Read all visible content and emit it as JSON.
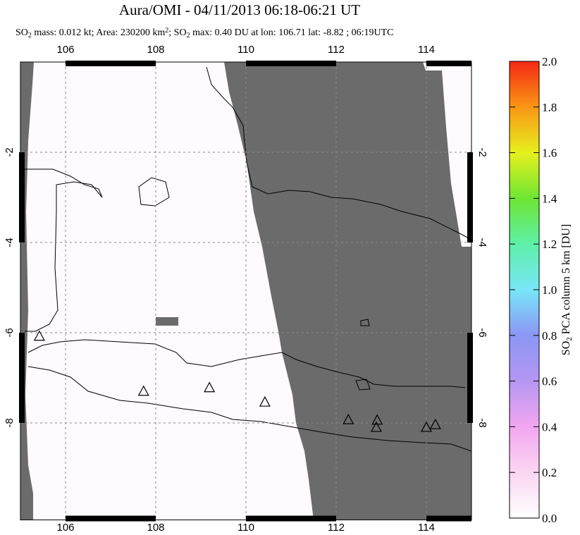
{
  "chart_data": {
    "type": "map",
    "title": "Aura/OMI - 04/11/2013 06:18-06:21 UT",
    "subtitle": [
      {
        "text": "SO"
      },
      {
        "text": "2",
        "script": "sub"
      },
      {
        "text": " mass: 0.012 kt; Area: 230200 km"
      },
      {
        "text": "2",
        "script": "sup"
      },
      {
        "text": "; SO"
      },
      {
        "text": "2",
        "script": "sub"
      },
      {
        "text": " max: 0.40 DU at lon: 106.71 lat: -8.82 ; 06:19UTC"
      }
    ],
    "xlim": [
      105,
      115
    ],
    "ylim": [
      -10.15,
      0
    ],
    "xticks": [
      106,
      108,
      110,
      112,
      114
    ],
    "yticks": [
      -2,
      -4,
      -6,
      -8
    ],
    "grid": true,
    "volcanoes": {
      "lon": [
        105.42,
        107.73,
        109.19,
        110.42,
        112.27,
        112.91,
        112.89,
        114.0,
        114.2
      ],
      "lat": [
        -6.09,
        -7.31,
        -7.23,
        -7.55,
        -7.94,
        -7.95,
        -8.11,
        -8.11,
        -8.05
      ]
    },
    "colorbar": {
      "label": [
        {
          "text": "SO"
        },
        {
          "text": "2",
          "script": "sub"
        },
        {
          "text": " PCA column 5 km [DU]"
        }
      ],
      "range": [
        0,
        2
      ],
      "ticks": [
        {
          "value": 0,
          "label": "0.0"
        },
        0.2,
        0.4,
        0.6,
        0.8,
        {
          "value": 1,
          "label": "1.0"
        },
        1.2,
        1.4,
        1.6,
        1.8,
        {
          "value": 2,
          "label": "2.0"
        }
      ]
    }
  }
}
